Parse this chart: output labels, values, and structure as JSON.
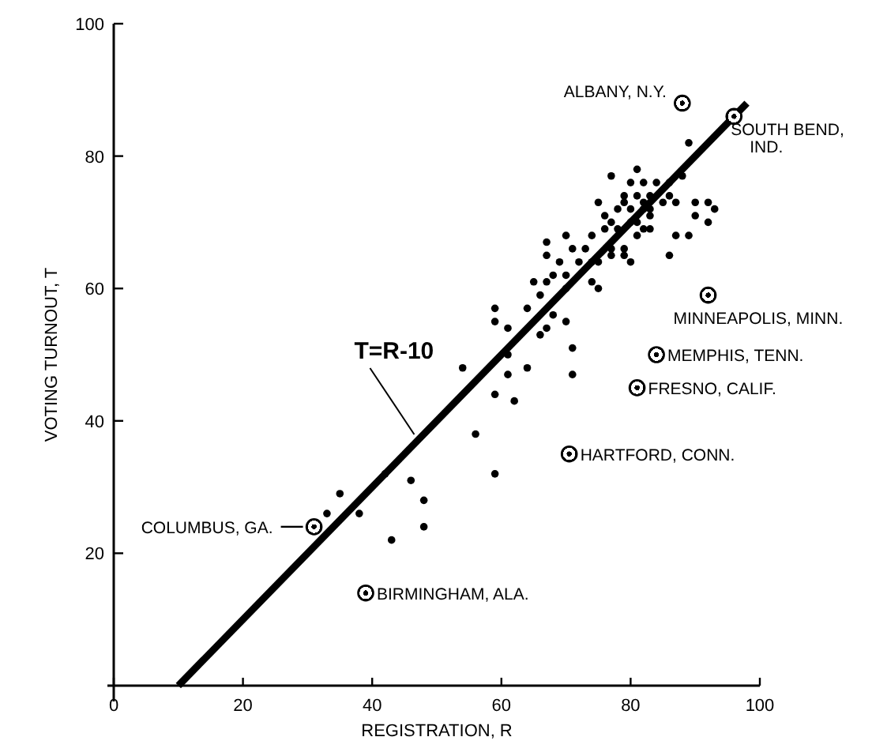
{
  "chart_data": {
    "type": "scatter",
    "xlabel": "REGISTRATION, R",
    "ylabel": "VOTING TURNOUT, T",
    "xlim": [
      0,
      100
    ],
    "ylim": [
      0,
      100
    ],
    "xticks": [
      0,
      20,
      40,
      60,
      80,
      100
    ],
    "yticks": [
      20,
      40,
      60,
      80,
      100
    ],
    "grid": false,
    "series": [
      {
        "marker": "circle",
        "color": "#000000",
        "x": [
          89,
          81,
          77,
          88,
          80,
          82,
          84,
          86,
          79,
          83,
          86,
          81,
          79,
          82,
          75,
          85,
          87,
          90,
          92,
          93,
          90,
          92,
          76,
          78,
          80,
          82,
          83,
          77,
          80,
          81,
          83,
          76,
          78,
          81,
          82,
          83,
          70,
          74,
          87,
          89,
          67,
          71,
          73,
          77,
          79,
          67,
          69,
          72,
          74,
          75,
          77,
          79,
          80,
          86,
          68,
          70,
          65,
          67,
          74,
          66,
          70,
          75,
          59,
          64,
          59,
          68,
          61,
          67,
          70,
          66,
          61,
          71,
          54,
          61,
          64,
          71,
          59,
          62,
          56,
          59,
          42,
          46,
          48,
          48,
          43,
          35,
          33,
          38
        ],
        "values": [
          82,
          78,
          77,
          77,
          76,
          76,
          76,
          76,
          74,
          74,
          74,
          74,
          73,
          73,
          73,
          73,
          73,
          73,
          73,
          72,
          71,
          70,
          71,
          72,
          72,
          72,
          72,
          70,
          70,
          70,
          71,
          69,
          69,
          68,
          69,
          69,
          68,
          68,
          68,
          68,
          67,
          66,
          66,
          66,
          66,
          65,
          64,
          64,
          64,
          64,
          65,
          65,
          64,
          65,
          62,
          62,
          61,
          61,
          61,
          59,
          60,
          60,
          57,
          57,
          55,
          56,
          54,
          54,
          55,
          53,
          50,
          51,
          48,
          47,
          48,
          47,
          44,
          43,
          38,
          32,
          32,
          31,
          28,
          24,
          22,
          29,
          26,
          26
        ]
      },
      {
        "marker": "circle",
        "color": "#000000",
        "x": [
          88,
          96,
          92,
          84,
          81,
          70.5,
          39,
          31
        ],
        "values": [
          88,
          86,
          59,
          50,
          45,
          35,
          14,
          24
        ]
      },
      {
        "type": "line",
        "color": "#000000",
        "x": [
          10,
          98
        ],
        "values": [
          0,
          88
        ]
      }
    ],
    "annotations": [
      {
        "text": "ALBANY, N.Y.",
        "x": 88,
        "y": 88
      },
      {
        "text": "SOUTH BEND,\nIND.",
        "x": 96,
        "y": 86
      },
      {
        "text": "MINNEAPOLIS, MINN.",
        "x": 92,
        "y": 59
      },
      {
        "text": "MEMPHIS, TENN.",
        "x": 84,
        "y": 50
      },
      {
        "text": "FRESNO, CALIF.",
        "x": 81,
        "y": 45
      },
      {
        "text": "HARTFORD, CONN.",
        "x": 70.5,
        "y": 35
      },
      {
        "text": "BIRMINGHAM, ALA.",
        "x": 39,
        "y": 14
      },
      {
        "text": "COLUMBUS, GA.",
        "x": 31,
        "y": 24
      },
      {
        "text": "T=R-10",
        "x": 47,
        "y": 37
      }
    ]
  }
}
